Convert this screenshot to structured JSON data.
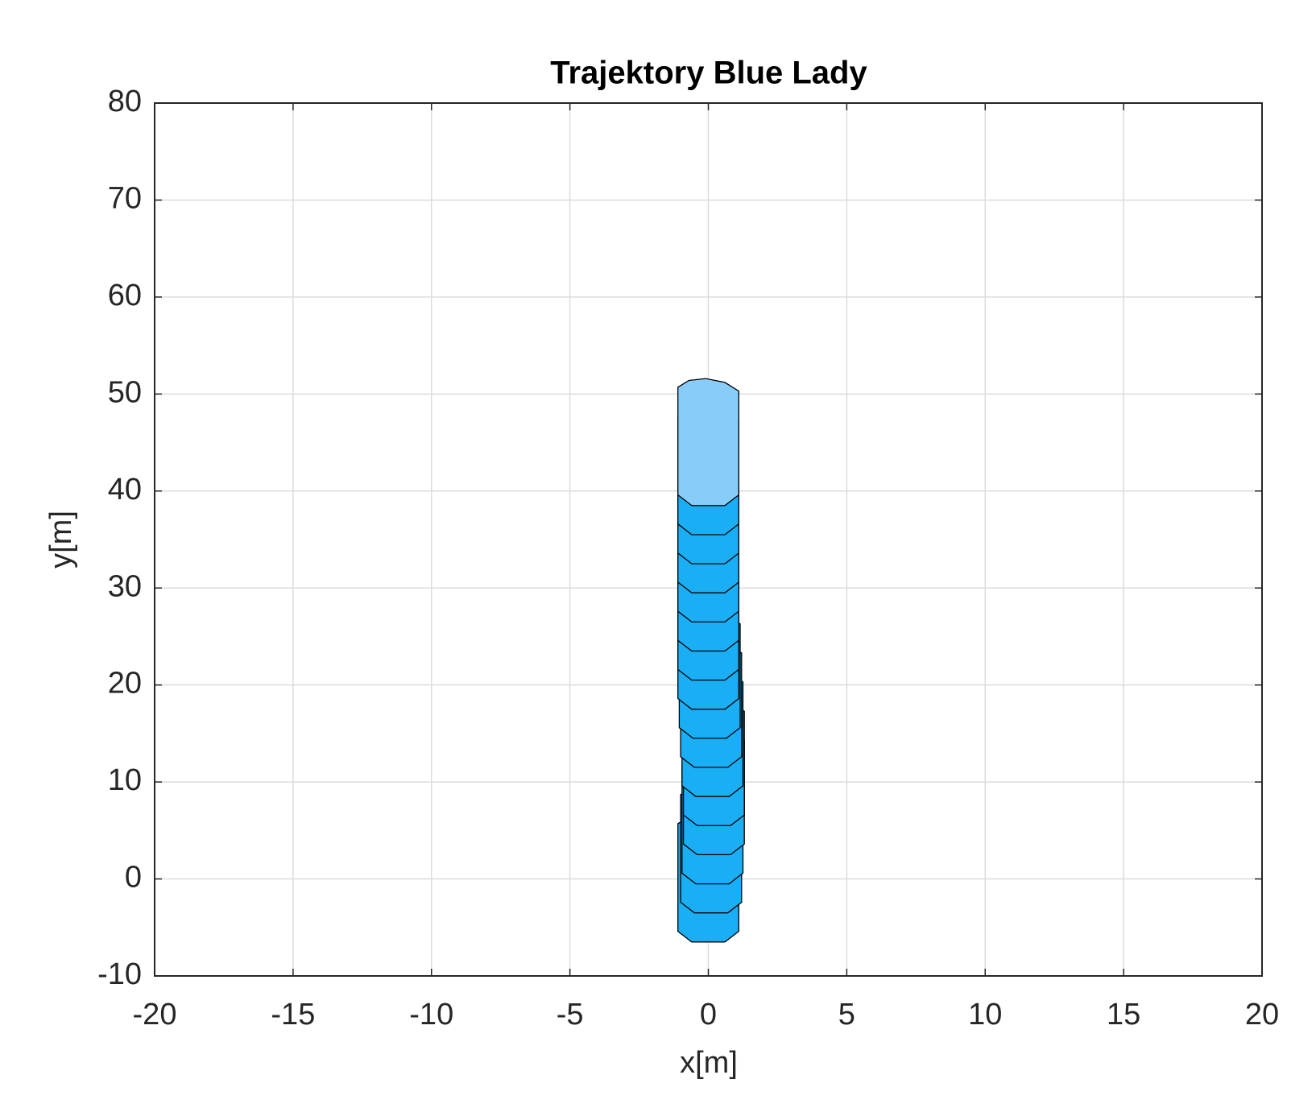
{
  "chart_data": {
    "type": "ship-track",
    "title": "Trajektory Blue Lady",
    "xlabel": "x[m]",
    "ylabel": "y[m]",
    "x": [
      0,
      0.1,
      0.15,
      0.2,
      0.2,
      0.15,
      0.1,
      0.05,
      0,
      0,
      0,
      0,
      0,
      0,
      0,
      0
    ],
    "values": [
      0,
      3,
      6,
      9,
      12,
      15,
      18,
      21,
      24,
      27,
      30,
      33,
      36,
      39,
      42,
      45
    ],
    "color": "#1aaff5",
    "last_color": "#88cdfa",
    "xlim": [
      -20,
      20
    ],
    "xticks": [
      -20,
      -15,
      -10,
      -5,
      0,
      5,
      10,
      15,
      20
    ],
    "ylim": [
      -10,
      80
    ],
    "yticks": [
      -10,
      0,
      10,
      20,
      30,
      40,
      50,
      60,
      70,
      80
    ],
    "grid": true
  }
}
